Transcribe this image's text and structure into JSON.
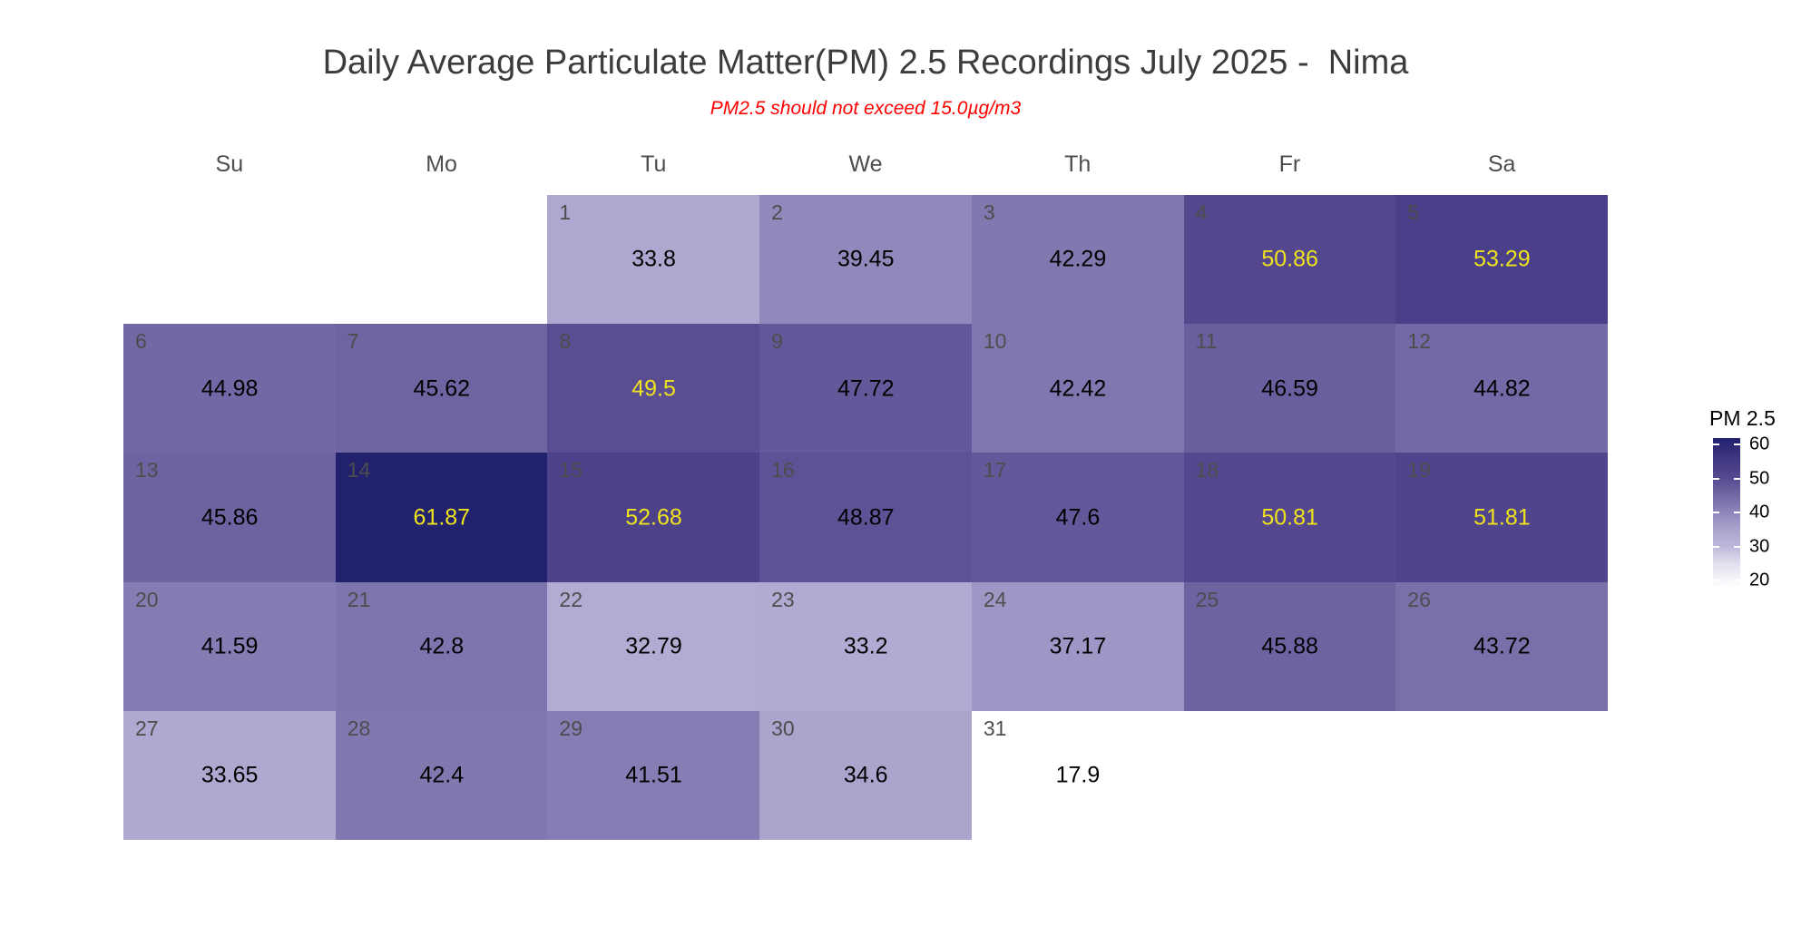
{
  "title": "Daily Average Particulate Matter(PM) 2.5 Recordings July 2025 -  Nima",
  "subtitle": "PM2.5 should not exceed 15.0µg/m3",
  "weekday_headers": [
    "Su",
    "Mo",
    "Tu",
    "We",
    "Th",
    "Fr",
    "Sa"
  ],
  "chart_data": {
    "type": "heatmap",
    "subtype": "calendar-heatmap",
    "title": "Daily Average Particulate Matter(PM) 2.5 Recordings July 2025 -  Nima",
    "subtitle": "PM2.5 should not exceed 15.0µg/m3",
    "month": "July 2025",
    "location": "Nima",
    "unit": "µg/m3",
    "weekday_columns": [
      "Su",
      "Mo",
      "Tu",
      "We",
      "Th",
      "Fr",
      "Sa"
    ],
    "first_day_column_index": 2,
    "days": [
      {
        "day": 1,
        "value": 33.8
      },
      {
        "day": 2,
        "value": 39.45
      },
      {
        "day": 3,
        "value": 42.29
      },
      {
        "day": 4,
        "value": 50.86
      },
      {
        "day": 5,
        "value": 53.29
      },
      {
        "day": 6,
        "value": 44.98
      },
      {
        "day": 7,
        "value": 45.62
      },
      {
        "day": 8,
        "value": 49.5
      },
      {
        "day": 9,
        "value": 47.72
      },
      {
        "day": 10,
        "value": 42.42
      },
      {
        "day": 11,
        "value": 46.59
      },
      {
        "day": 12,
        "value": 44.82
      },
      {
        "day": 13,
        "value": 45.86
      },
      {
        "day": 14,
        "value": 61.87
      },
      {
        "day": 15,
        "value": 52.68
      },
      {
        "day": 16,
        "value": 48.87
      },
      {
        "day": 17,
        "value": 47.6
      },
      {
        "day": 18,
        "value": 50.81
      },
      {
        "day": 19,
        "value": 51.81
      },
      {
        "day": 20,
        "value": 41.59
      },
      {
        "day": 21,
        "value": 42.8
      },
      {
        "day": 22,
        "value": 32.79
      },
      {
        "day": 23,
        "value": 33.2
      },
      {
        "day": 24,
        "value": 37.17
      },
      {
        "day": 25,
        "value": 45.88
      },
      {
        "day": 26,
        "value": 43.72
      },
      {
        "day": 27,
        "value": 33.65
      },
      {
        "day": 28,
        "value": 42.4
      },
      {
        "day": 29,
        "value": 41.51
      },
      {
        "day": 30,
        "value": 34.6
      },
      {
        "day": 31,
        "value": 17.9
      }
    ],
    "yellow_value_days": [
      4,
      5,
      8,
      14,
      15,
      18,
      19
    ],
    "legend": {
      "title": "PM 2.5",
      "ticks": [
        60,
        50,
        40,
        30,
        20
      ],
      "domain_min": 17.9,
      "domain_max": 61.87
    },
    "colorscale": [
      {
        "value": 17.9,
        "color": "#FFFFFF"
      },
      {
        "value": 25,
        "color": "#E3DFEE"
      },
      {
        "value": 30,
        "color": "#BFB7DA"
      },
      {
        "value": 35,
        "color": "#ABA2CD"
      },
      {
        "value": 40,
        "color": "#8E86BA"
      },
      {
        "value": 45,
        "color": "#7268A5"
      },
      {
        "value": 50,
        "color": "#584A90"
      },
      {
        "value": 55,
        "color": "#433A84"
      },
      {
        "value": 61.87,
        "color": "#22216E"
      }
    ],
    "colors": {
      "value_text": "#000000",
      "value_text_highlight": "#EFE41C",
      "day_number_text": "#4D4D4D",
      "weekday_header_text": "#4D4D4D",
      "title_text": "#3C3C3C",
      "subtitle_text": "#FF0000",
      "background": "#FFFFFF"
    }
  }
}
